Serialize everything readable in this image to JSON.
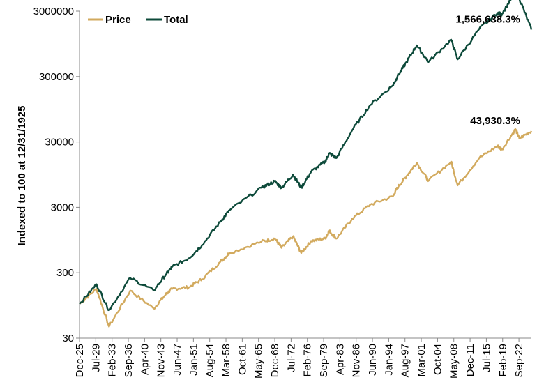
{
  "chart_data": {
    "type": "line",
    "title": "",
    "xlabel": "",
    "ylabel": "Indexed to 100 at 12/31/1925",
    "yscale": "log",
    "ylim": [
      30,
      3000000
    ],
    "yticks": [
      30,
      300,
      3000,
      30000,
      300000,
      3000000
    ],
    "ytick_labels": [
      "30",
      "300",
      "3000",
      "30000",
      "300000",
      "3000000"
    ],
    "xlim": [
      "Dec-25",
      "Jun-25"
    ],
    "xtick_labels": [
      "Dec-25",
      "Jul-29",
      "Feb-33",
      "Sep-36",
      "Apr-40",
      "Nov-43",
      "Jun-47",
      "Jan-51",
      "Aug-54",
      "Mar-58",
      "Oct-61",
      "May-65",
      "Dec-68",
      "Jul-72",
      "Feb-76",
      "Sep-79",
      "Apr-83",
      "Nov-86",
      "Jun-90",
      "Jan-94",
      "Aug-97",
      "Mar-01",
      "Oct-04",
      "May-08",
      "Dec-11",
      "Jul-15",
      "Feb-19",
      "Sep-22"
    ],
    "grid": false,
    "legend_position": "top-left",
    "colors": {
      "price": "#d2aa5e",
      "total": "#0d4a3a"
    },
    "series": [
      {
        "name": "Price",
        "x": [
          "Dec-25",
          "Sep-29",
          "Jun-32",
          "Feb-37",
          "Apr-42",
          "Dec-44",
          "May-46",
          "Jan-50",
          "Dec-52",
          "Dec-56",
          "Dec-58",
          "Jan-66",
          "Dec-68",
          "Jun-70",
          "Dec-72",
          "Oct-74",
          "Dec-76",
          "Jan-80",
          "Dec-80",
          "Jul-82",
          "Dec-85",
          "Dec-89",
          "Dec-94",
          "Dec-95",
          "Dec-97",
          "Mar-00",
          "Oct-02",
          "Oct-07",
          "Mar-09",
          "Dec-13",
          "Dec-17",
          "Dec-18",
          "Dec-21",
          "Oct-22",
          "Jun-25"
        ],
        "values": [
          100,
          170,
          45,
          160,
          85,
          140,
          170,
          180,
          240,
          440,
          600,
          900,
          1000,
          720,
          1080,
          600,
          920,
          1000,
          1300,
          1000,
          2000,
          3300,
          4400,
          6000,
          9000,
          14500,
          7600,
          15000,
          6500,
          17000,
          26000,
          23000,
          47000,
          34000,
          44030
        ]
      },
      {
        "name": "Total",
        "x": [
          "Dec-25",
          "Sep-29",
          "Jun-32",
          "Feb-37",
          "Apr-42",
          "Dec-44",
          "May-46",
          "Jan-50",
          "Dec-52",
          "Dec-56",
          "Dec-58",
          "Jan-66",
          "Dec-68",
          "Jun-70",
          "Dec-72",
          "Oct-74",
          "Dec-76",
          "Jan-80",
          "Dec-80",
          "Jul-82",
          "Dec-85",
          "Dec-89",
          "Dec-94",
          "Dec-95",
          "Dec-97",
          "Mar-00",
          "Oct-02",
          "Oct-07",
          "Mar-09",
          "Dec-13",
          "Dec-17",
          "Dec-18",
          "Dec-21",
          "Oct-22",
          "Jun-25"
        ],
        "values": [
          100,
          200,
          80,
          250,
          160,
          280,
          370,
          500,
          800,
          1800,
          2700,
          6000,
          7500,
          6000,
          9500,
          6000,
          10500,
          15000,
          20000,
          17000,
          45000,
          110000,
          220000,
          300000,
          500000,
          900000,
          500000,
          1100000,
          550000,
          1600000,
          2800000,
          2700000,
          6000000,
          4700000,
          1566738
        ]
      }
    ],
    "annotations": [
      {
        "series": "Total",
        "text": "1,566,638.3%"
      },
      {
        "series": "Price",
        "text": "43,930.3%"
      }
    ]
  }
}
